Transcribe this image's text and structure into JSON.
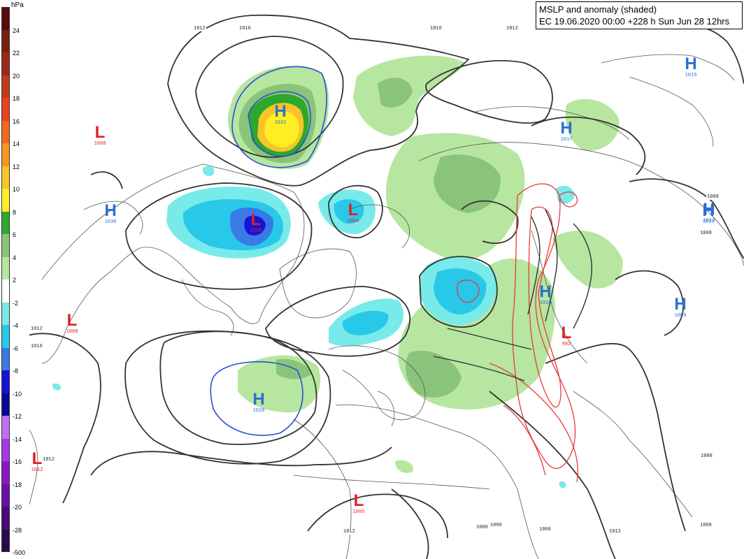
{
  "title": {
    "line1": "MSLP and anomaly (shaded)",
    "line2": "EC 19.06.2020 00:00 +228 h Sun Jun 28 12hrs"
  },
  "legend": {
    "unit": "hPa",
    "entries": [
      {
        "label": "24",
        "color": "#5a0a0a"
      },
      {
        "label": "22",
        "color": "#7a1e12"
      },
      {
        "label": "20",
        "color": "#9b2a18"
      },
      {
        "label": "18",
        "color": "#c0391c"
      },
      {
        "label": "16",
        "color": "#e8421c"
      },
      {
        "label": "14",
        "color": "#f06a1c"
      },
      {
        "label": "12",
        "color": "#f5961e"
      },
      {
        "label": "10",
        "color": "#f8c42a"
      },
      {
        "label": "8",
        "color": "#ffee22"
      },
      {
        "label": "6",
        "color": "#2ca82c"
      },
      {
        "label": "4",
        "color": "#8ac47a"
      },
      {
        "label": "2",
        "color": "#b6e6a0"
      },
      {
        "label": "-2",
        "color": "#ffffff"
      },
      {
        "label": "-4",
        "color": "#78eaea"
      },
      {
        "label": "-6",
        "color": "#28c8e8"
      },
      {
        "label": "-8",
        "color": "#3a7ae6"
      },
      {
        "label": "-10",
        "color": "#1414d6"
      },
      {
        "label": "-12",
        "color": "#0a0a98"
      },
      {
        "label": "-14",
        "color": "#c070ee"
      },
      {
        "label": "-16",
        "color": "#a838e6"
      },
      {
        "label": "-18",
        "color": "#8a16c8"
      },
      {
        "label": "-20",
        "color": "#6a0ea8"
      },
      {
        "label": "-28",
        "color": "#4a0a7a"
      },
      {
        "label": "-500",
        "color": "#2a0a4a"
      }
    ]
  },
  "pressure_systems": [
    {
      "type": "H",
      "value": "1032",
      "color": "#2b6fd6"
    },
    {
      "type": "H",
      "value": "1028",
      "color": "#2b6fd6"
    },
    {
      "type": "H",
      "value": "1030",
      "color": "#2b6fd6"
    },
    {
      "type": "H",
      "value": "1015",
      "color": "#2b6fd6"
    },
    {
      "type": "H",
      "value": "1013",
      "color": "#2b6fd6"
    },
    {
      "type": "H",
      "value": "1017",
      "color": "#2b6fd6"
    },
    {
      "type": "H",
      "value": "1013",
      "color": "#2b6fd6"
    },
    {
      "type": "H",
      "value": "1020",
      "color": "#2b6fd6"
    },
    {
      "type": "H",
      "value": "1009",
      "color": "#2b6fd6"
    },
    {
      "type": "L",
      "value": "1008",
      "color": "#e02020"
    },
    {
      "type": "L",
      "value": "1003",
      "color": "#e02020"
    },
    {
      "type": "L",
      "value": "1004",
      "color": "#e02020"
    },
    {
      "type": "L",
      "value": "1008",
      "color": "#e02020"
    },
    {
      "type": "L",
      "value": "1012",
      "color": "#e02020"
    },
    {
      "type": "L",
      "value": "992",
      "color": "#e02020"
    },
    {
      "type": "L",
      "value": "1005",
      "color": "#e02020"
    }
  ],
  "isobar_labels": [
    "1012",
    "1016",
    "1016",
    "1012",
    "1012",
    "1016",
    "1012",
    "1008",
    "1008",
    "1008",
    "1012",
    "1012",
    "1000",
    "1000",
    "1000",
    "1008"
  ],
  "colors": {
    "isobar": "#333333",
    "high_contour": "#2b4fd6",
    "low_contour": "#e83a3a",
    "land_border": "#555555"
  }
}
